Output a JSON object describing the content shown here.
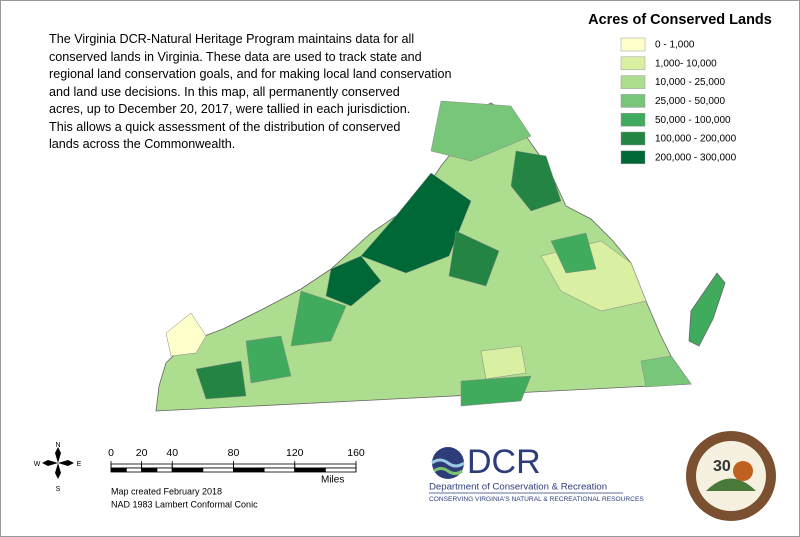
{
  "description": [
    "The Virginia DCR-Natural Heritage Program maintains data for all",
    "conserved lands in Virginia. These data are used to track state and",
    "regional land conservation goals, and for making local land conservation",
    "and land use decisions.  In this map, all permanently conserved",
    "acres, up to December 20, 2017, were tallied in each jurisdiction.",
    "This allows a quick assessment of the distribution of conserved",
    "lands across the Commonwealth."
  ],
  "legend": {
    "title": "Acres of Conserved Lands",
    "entries": [
      {
        "label": "0 - 1,000",
        "color": "#ffffcc"
      },
      {
        "label": "1,000- 10,000",
        "color": "#d9f0a3"
      },
      {
        "label": "10,000 - 25,000",
        "color": "#addd8e"
      },
      {
        "label": "25,000 - 50,000",
        "color": "#78c679"
      },
      {
        "label": "50,000 - 100,000",
        "color": "#41ab5d"
      },
      {
        "label": "100,000 - 200,000",
        "color": "#238443"
      },
      {
        "label": "200,000 - 300,000",
        "color": "#006837"
      }
    ]
  },
  "scale_bar": {
    "ticks": [
      0,
      20,
      40,
      80,
      120,
      160
    ],
    "unit": "Miles"
  },
  "compass": {
    "n": "N",
    "e": "E",
    "s": "S",
    "w": "W"
  },
  "credits": [
    "Map created February 2018",
    "NAD 1983 Lambert Conformal Conic"
  ],
  "logo": {
    "name": "DCR",
    "department": "Department of Conservation & Recreation",
    "tagline": "CONSERVING VIRGINIA'S NATURAL & RECREATIONAL RESOURCES"
  },
  "seal": {
    "number": "30"
  }
}
